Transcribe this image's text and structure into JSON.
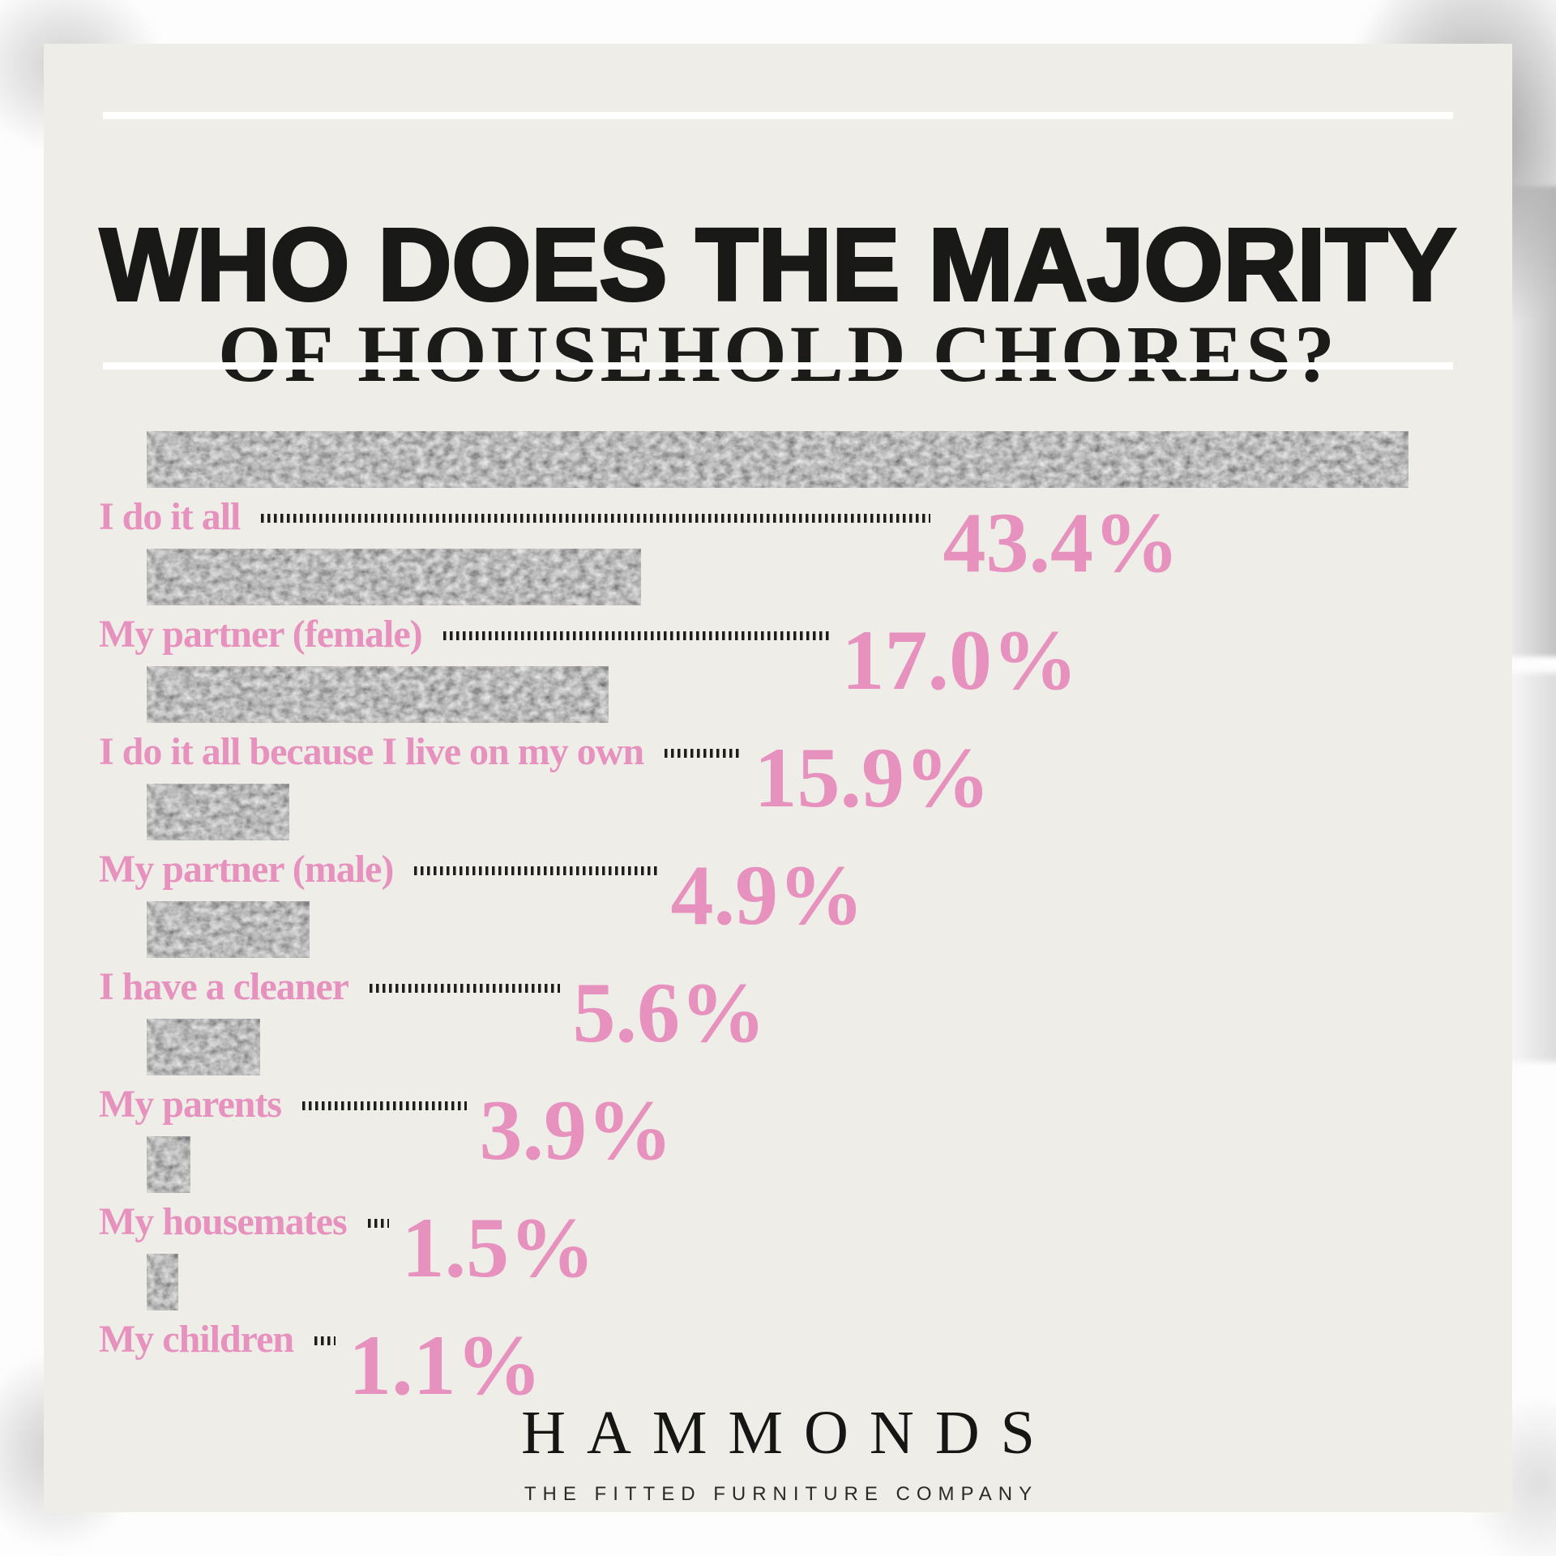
{
  "header": {
    "title_line1": "WHO DOES THE MAJORITY",
    "title_line2": "OF HOUSEHOLD CHORES?"
  },
  "chart_data": {
    "type": "bar",
    "orientation": "horizontal",
    "title": "Who does the majority of household chores?",
    "categories": [
      "I do it all",
      "My partner (female)",
      "I do it all because I live on my own",
      "My partner (male)",
      "I have a cleaner",
      "My parents",
      "My housemates",
      "My children"
    ],
    "values": [
      43.4,
      17.0,
      15.9,
      4.9,
      5.6,
      3.9,
      1.5,
      1.1
    ],
    "value_labels": [
      "43.4%",
      "17.0%",
      "15.9%",
      "4.9%",
      "5.6%",
      "3.9%",
      "1.5%",
      "1.1%"
    ],
    "unit": "percent",
    "xlim": [
      0,
      43.4
    ],
    "grid": false,
    "legend": false,
    "bar_style": "speckled-gray-noise-texture",
    "label_color": "#E691BE",
    "value_color": "#E691BE"
  },
  "footer": {
    "brand": "HAMMONDS",
    "tagline": "THE FITTED FURNITURE COMPANY"
  },
  "colors": {
    "card_background": "#EFEDE7",
    "page_background": "#FDFDFD",
    "text_dark": "#1B1B19",
    "pink": "#E691BE",
    "divider": "#FFFFFF",
    "smudge_gray": "#A9A9A9"
  }
}
